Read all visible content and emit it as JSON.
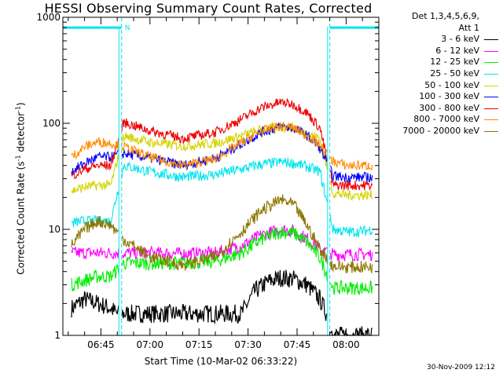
{
  "chart_data": {
    "type": "line",
    "title": "HESSI Observing Summary Count Rates, Corrected",
    "xlabel": "Start Time (10-Mar-02 06:33:22)",
    "ylabel": "Corrected Count Rate (s",
    "ylabel_sup1": "-1",
    "ylabel_mid": " detector",
    "ylabel_sup2": "-1",
    "ylabel_end": ")",
    "y_scale": "log",
    "ylim": [
      1,
      1000
    ],
    "y_ticks": [
      1,
      10,
      100,
      1000
    ],
    "y_tick_labels": [
      "1",
      "10",
      "100",
      "1000"
    ],
    "xlim": [
      "06:33:22",
      "08:10:00"
    ],
    "x_ticks": [
      "06:45",
      "07:00",
      "07:15",
      "07:30",
      "07:45",
      "08:00"
    ],
    "x_tick_labels": [
      "06:45",
      "07:00",
      "07:15",
      "07:30",
      "07:45",
      "08:00"
    ],
    "legend_header": [
      "Det 1,3,4,5,6,9,",
      "Att 1"
    ],
    "legend_position": "right, outside plot",
    "night_flag": {
      "label": "N",
      "y": 800,
      "color": "#00e5ee",
      "segments": [
        [
          "06:33:22",
          "06:51:20"
        ],
        [
          "07:55:00",
          "08:10:00"
        ]
      ]
    },
    "eclipse_bounds": [
      "06:51:20",
      "07:55:00"
    ],
    "data_gaps": [
      [
        "06:50:30",
        "06:51:20"
      ],
      [
        "07:54:20",
        "07:55:00"
      ]
    ],
    "series": [
      {
        "name": "3 - 6 keV",
        "color": "#000000",
        "x": [
          "06:36",
          "06:40",
          "06:44",
          "06:48",
          "06:50",
          "07:28",
          "07:32",
          "07:36",
          "07:40",
          "07:44",
          "07:48",
          "07:52",
          "07:54",
          "07:56",
          "08:00",
          "08:04",
          "08:08"
        ],
        "y": [
          1.8,
          2.2,
          2.0,
          1.8,
          1.6,
          1.6,
          2.6,
          3.2,
          3.5,
          3.4,
          3.0,
          2.2,
          1.6,
          1.0,
          1.0,
          1.0,
          1.0
        ]
      },
      {
        "name": "6 - 12 keV",
        "color": "#ff00ff",
        "x": [
          "06:36",
          "06:40",
          "06:44",
          "06:48",
          "06:52",
          "07:00",
          "07:10",
          "07:20",
          "07:28",
          "07:34",
          "07:40",
          "07:44",
          "07:48",
          "07:52",
          "07:56",
          "08:00",
          "08:04",
          "08:08"
        ],
        "y": [
          6.0,
          6.0,
          6.0,
          6.0,
          6.0,
          6.0,
          5.9,
          6.0,
          7.0,
          8.8,
          10.0,
          9.6,
          8.2,
          6.5,
          5.8,
          5.8,
          5.8,
          5.8
        ]
      },
      {
        "name": "12 - 25 keV",
        "color": "#00ee00",
        "x": [
          "06:36",
          "06:40",
          "06:44",
          "06:48",
          "06:52",
          "07:00",
          "07:10",
          "07:20",
          "07:28",
          "07:34",
          "07:40",
          "07:44",
          "07:48",
          "07:52",
          "07:56",
          "08:00",
          "08:04",
          "08:08"
        ],
        "y": [
          3.0,
          3.3,
          3.6,
          3.6,
          4.8,
          4.8,
          4.8,
          5.0,
          6.0,
          8.0,
          9.5,
          9.2,
          7.6,
          5.4,
          2.8,
          2.8,
          2.8,
          2.8
        ]
      },
      {
        "name": "25 - 50 keV",
        "color": "#00e5ee",
        "x": [
          "06:36",
          "06:40",
          "06:44",
          "06:48",
          "06:52",
          "07:00",
          "07:10",
          "07:20",
          "07:28",
          "07:34",
          "07:40",
          "07:44",
          "07:48",
          "07:52",
          "07:56",
          "08:00",
          "08:04",
          "08:08"
        ],
        "y": [
          11.5,
          12.0,
          12.0,
          12.0,
          40.0,
          35.0,
          31.0,
          33.0,
          37.0,
          41.0,
          43.0,
          42.0,
          39.0,
          35.0,
          10.0,
          9.5,
          9.5,
          10.0
        ]
      },
      {
        "name": "50 - 100 keV",
        "color": "#d4d400",
        "x": [
          "06:36",
          "06:40",
          "06:44",
          "06:48",
          "06:52",
          "07:00",
          "07:10",
          "07:20",
          "07:28",
          "07:34",
          "07:40",
          "07:44",
          "07:48",
          "07:52",
          "07:56",
          "08:00",
          "08:04",
          "08:08"
        ],
        "y": [
          23.0,
          25.0,
          26.0,
          26.0,
          76.0,
          66.0,
          61.0,
          65.0,
          76.0,
          87.0,
          93.0,
          90.0,
          80.0,
          72.0,
          22.0,
          21.0,
          21.0,
          21.0
        ]
      },
      {
        "name": "100 - 300 keV",
        "color": "#0000ff",
        "x": [
          "06:36",
          "06:40",
          "06:44",
          "06:48",
          "06:52",
          "07:00",
          "07:10",
          "07:20",
          "07:28",
          "07:34",
          "07:40",
          "07:44",
          "07:48",
          "07:52",
          "07:56",
          "08:00",
          "08:04",
          "08:08"
        ],
        "y": [
          35.0,
          42.0,
          48.0,
          48.0,
          52.0,
          47.0,
          40.0,
          47.0,
          64.0,
          82.0,
          93.0,
          90.0,
          77.0,
          58.0,
          32.0,
          31.0,
          31.0,
          31.0
        ]
      },
      {
        "name": "300 - 800 keV",
        "color": "#ee0000",
        "x": [
          "06:36",
          "06:40",
          "06:44",
          "06:48",
          "06:52",
          "07:00",
          "07:10",
          "07:20",
          "07:28",
          "07:34",
          "07:40",
          "07:44",
          "07:48",
          "07:52",
          "07:56",
          "08:00",
          "08:04",
          "08:08"
        ],
        "y": [
          32.0,
          37.0,
          40.0,
          40.0,
          102.0,
          85.0,
          72.0,
          82.0,
          110.0,
          140.0,
          158.0,
          150.0,
          126.0,
          90.0,
          26.0,
          26.0,
          26.0,
          26.0
        ]
      },
      {
        "name": "800 - 7000 keV",
        "color": "#ff8c00",
        "x": [
          "06:36",
          "06:40",
          "06:44",
          "06:48",
          "06:52",
          "07:00",
          "07:10",
          "07:20",
          "07:28",
          "07:34",
          "07:40",
          "07:44",
          "07:48",
          "07:52",
          "07:56",
          "08:00",
          "08:04",
          "08:08"
        ],
        "y": [
          48.0,
          60.0,
          67.0,
          65.0,
          60.0,
          48.0,
          40.0,
          46.0,
          66.0,
          84.0,
          94.0,
          90.0,
          77.0,
          62.0,
          44.0,
          40.0,
          40.0,
          40.0
        ]
      },
      {
        "name": "7000 - 20000 keV",
        "color": "#8b7500",
        "x": [
          "06:36",
          "06:40",
          "06:44",
          "06:48",
          "06:52",
          "07:00",
          "07:10",
          "07:20",
          "07:28",
          "07:34",
          "07:40",
          "07:44",
          "07:48",
          "07:52",
          "07:56",
          "08:00",
          "08:04",
          "08:08"
        ],
        "y": [
          7.0,
          10.0,
          12.0,
          11.0,
          8.0,
          5.5,
          4.6,
          5.5,
          9.5,
          15.0,
          19.0,
          17.0,
          11.0,
          6.5,
          4.5,
          4.4,
          4.4,
          4.4
        ]
      }
    ],
    "grid": false,
    "timestamp": "30-Nov-2009 12:12"
  }
}
